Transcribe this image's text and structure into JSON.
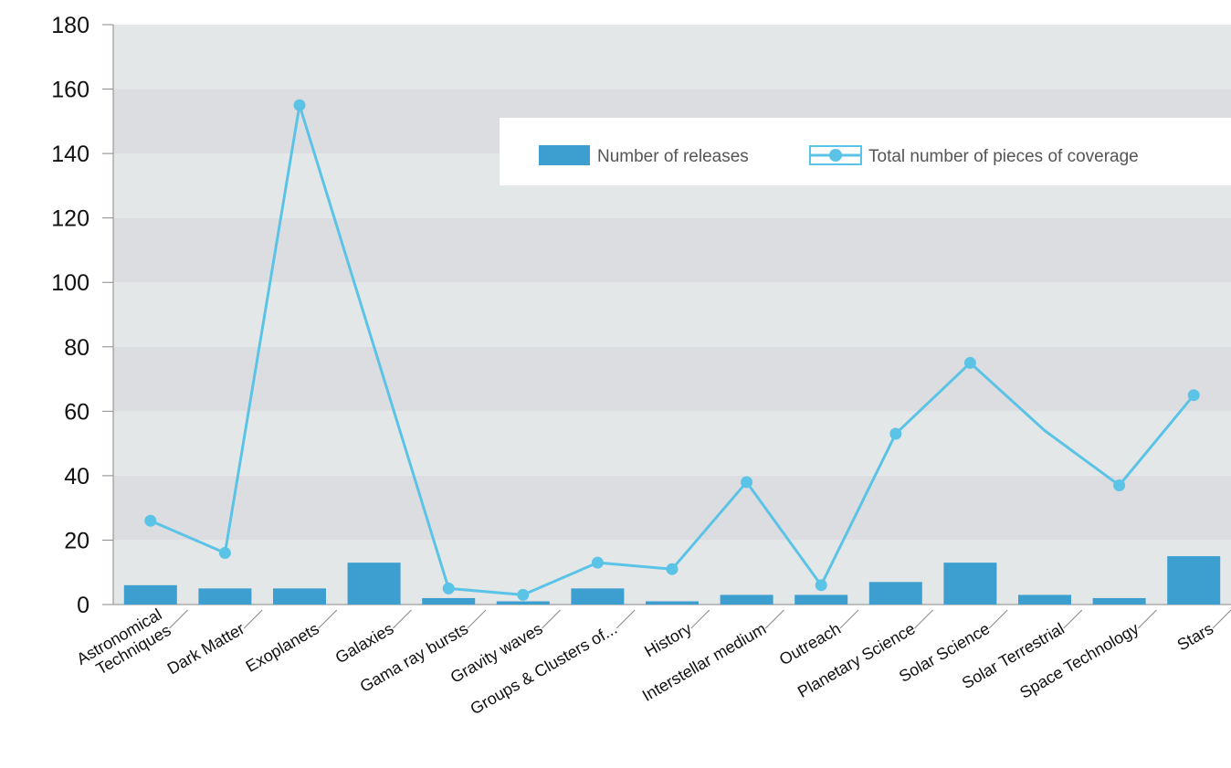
{
  "chart_data": {
    "type": "bar",
    "categories": [
      [
        "Astronomical",
        "Techniques"
      ],
      [
        "Dark Matter"
      ],
      [
        "Exoplanets"
      ],
      [
        "Galaxies"
      ],
      [
        "Gama ray bursts"
      ],
      [
        "Gravity waves"
      ],
      [
        "Groups & Clusters of..."
      ],
      [
        "History"
      ],
      [
        "Interstellar medium"
      ],
      [
        "Outreach"
      ],
      [
        "Planetary Science"
      ],
      [
        "Solar Science"
      ],
      [
        "Solar Terrestrial"
      ],
      [
        "Space Technology"
      ],
      [
        "Stars"
      ]
    ],
    "series": [
      {
        "name": "Number of releases",
        "type": "bar",
        "color": "#3d9fcf",
        "values": [
          6,
          5,
          5,
          13,
          2,
          1,
          5,
          1,
          3,
          3,
          7,
          13,
          3,
          2,
          15
        ]
      },
      {
        "name": "Total number of pieces of coverage",
        "type": "line",
        "color": "#5bc3e6",
        "values": [
          26,
          16,
          155,
          80,
          5,
          3,
          13,
          11,
          38,
          6,
          53,
          75,
          54,
          37,
          65
        ],
        "markers": [
          true,
          true,
          true,
          false,
          true,
          true,
          true,
          true,
          true,
          true,
          true,
          true,
          false,
          true,
          true
        ]
      }
    ],
    "yticks": [
      0,
      20,
      40,
      60,
      80,
      100,
      120,
      140,
      160,
      180
    ],
    "ylim": [
      0,
      180
    ],
    "grid": "horizontal alternating bands",
    "legend_position": "top-right",
    "band_colors": [
      "#e4e7e8",
      "#dcdde0"
    ]
  }
}
